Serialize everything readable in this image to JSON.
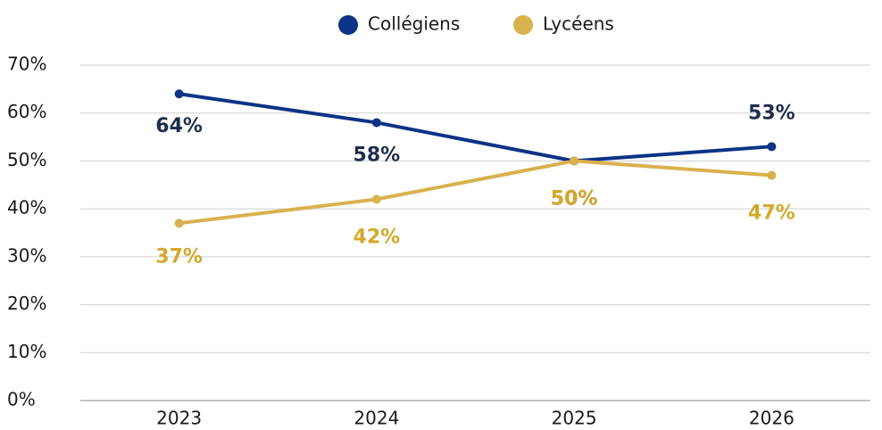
{
  "chart_data": {
    "type": "line",
    "categories": [
      "2023",
      "2024",
      "2025",
      "2026"
    ],
    "series": [
      {
        "name": "Collégiens",
        "color": "#0b3386",
        "label_color": "#1f2d4e",
        "values": [
          64,
          58,
          50,
          53
        ],
        "value_labels": [
          "64%",
          "58%",
          "50%",
          "53%"
        ]
      },
      {
        "name": "Lycéens",
        "color": "#d9b14e",
        "label_color": "#d4a82a",
        "values": [
          37,
          42,
          50,
          47
        ],
        "value_labels": [
          "37%",
          "42%",
          "50%",
          "47%"
        ]
      }
    ],
    "ylim": [
      0,
      70
    ],
    "yticks": [
      {
        "value": 0,
        "label": "0%"
      },
      {
        "value": 10,
        "label": "10%"
      },
      {
        "value": 20,
        "label": "20%"
      },
      {
        "value": 30,
        "label": "30%"
      },
      {
        "value": 40,
        "label": "40%"
      },
      {
        "value": 50,
        "label": "50%"
      },
      {
        "value": 60,
        "label": "60%"
      },
      {
        "value": 70,
        "label": "70%"
      }
    ],
    "grid": true,
    "legend": "top"
  }
}
